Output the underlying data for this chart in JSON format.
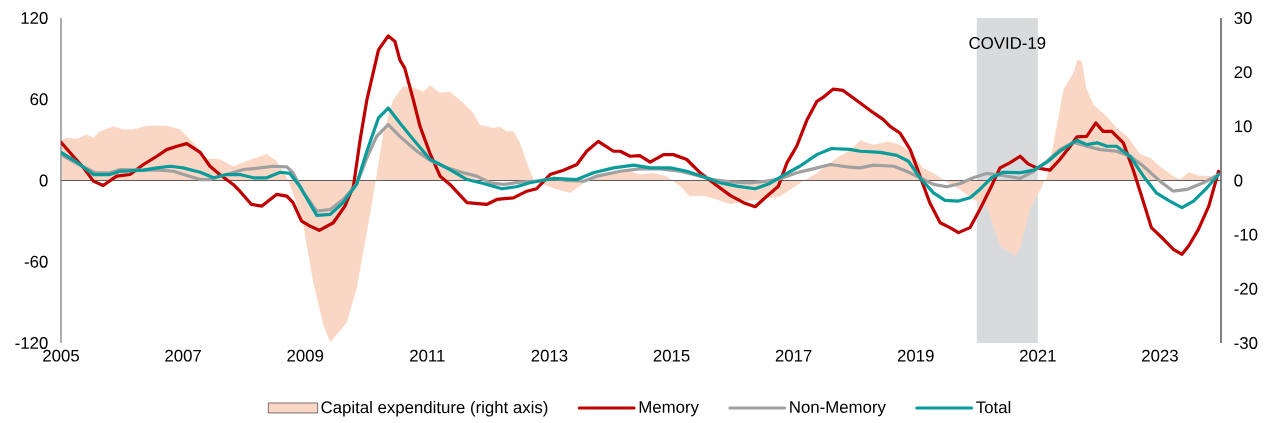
{
  "chart_data": {
    "type": "line",
    "xlim": [
      2005,
      2024
    ],
    "xticks": [
      2005,
      2007,
      2009,
      2011,
      2013,
      2015,
      2017,
      2019,
      2021,
      2023
    ],
    "ylim": [
      -120,
      120
    ],
    "yticks": [
      -120,
      -60,
      0,
      60,
      120
    ],
    "y2lim": [
      -30,
      30
    ],
    "y2ticks": [
      -30,
      -20,
      -10,
      0,
      10,
      20,
      30
    ],
    "legend": "bottom",
    "bands": [
      {
        "axis": "x",
        "from": 2020,
        "to": 2021,
        "label": "COVID-19",
        "color": "#d9dadc"
      }
    ],
    "series": [
      {
        "name": "Capital expenditure (right axis)",
        "type": "area",
        "axis": "y2",
        "color": "#fad7c5",
        "x": [
          2005.02,
          2005.09,
          2005.26,
          2005.42,
          2005.53,
          2005.64,
          2005.86,
          2006.02,
          2006.18,
          2006.4,
          2006.73,
          2006.95,
          2007.17,
          2007.39,
          2007.6,
          2007.82,
          2008.04,
          2008.37,
          2008.53,
          2008.7,
          2008.8,
          2008.97,
          2009.13,
          2009.3,
          2009.41,
          2009.68,
          2009.84,
          2010.01,
          2010.14,
          2010.28,
          2010.44,
          2010.61,
          2010.77,
          2010.94,
          2011.04,
          2011.21,
          2011.37,
          2011.59,
          2011.75,
          2011.86,
          2012.08,
          2012.19,
          2012.3,
          2012.41,
          2012.52,
          2012.63,
          2012.74,
          2012.96,
          2013.17,
          2013.34,
          2013.5,
          2013.72,
          2013.94,
          2014.27,
          2014.48,
          2014.7,
          2014.92,
          2015.14,
          2015.3,
          2015.52,
          2015.74,
          2015.96,
          2016.23,
          2016.5,
          2016.78,
          2016.94,
          2017.16,
          2017.38,
          2017.6,
          2017.76,
          2017.92,
          2018.09,
          2018.31,
          2018.55,
          2018.74,
          2018.93,
          2019.12,
          2019.29,
          2019.51,
          2019.73,
          2019.94,
          2020.16,
          2020.38,
          2020.63,
          2020.71,
          2020.87,
          2021.04,
          2021.15,
          2021.31,
          2021.42,
          2021.58,
          2021.65,
          2021.72,
          2021.8,
          2021.91,
          2022.13,
          2022.29,
          2022.46,
          2022.68,
          2022.84,
          2023,
          2023.22,
          2023.33,
          2023.47,
          2023.63,
          2023.82,
          2023.96
        ],
        "values": [
          7.5,
          7.9,
          7.7,
          8.5,
          7.9,
          9.1,
          10,
          9.4,
          9.4,
          10.1,
          10.1,
          9.4,
          6.9,
          4,
          3.9,
          2.6,
          3.6,
          4.9,
          3.6,
          0.5,
          -2.3,
          -8.4,
          -18.8,
          -26.8,
          -29.9,
          -26.2,
          -20.1,
          -9.6,
          -1,
          8.8,
          14.9,
          17.4,
          17.1,
          16.4,
          17.6,
          16.2,
          16.4,
          14.3,
          12.5,
          10.3,
          9.7,
          9.9,
          9.1,
          9.1,
          6.9,
          3.3,
          0.2,
          -1,
          -1.8,
          -2.3,
          -1,
          1.1,
          1.4,
          1.9,
          1.1,
          1.4,
          0.8,
          -1,
          -2.9,
          -2.8,
          -3.5,
          -4.4,
          -3.8,
          -3.5,
          -2.9,
          -1.7,
          -0.1,
          1.4,
          3.3,
          4.5,
          5.6,
          7.4,
          6.6,
          7.2,
          6.6,
          5.1,
          2.3,
          1.4,
          -0.3,
          -1.7,
          -3.5,
          -4.7,
          -12.1,
          -13.9,
          -12.4,
          -5.3,
          -1.7,
          0.8,
          10,
          16.8,
          19.8,
          22.3,
          22,
          16.8,
          14,
          11.8,
          9.7,
          8.2,
          4.8,
          4.2,
          2.6,
          0.8,
          0.2,
          1.5,
          0.9,
          0.8,
          -0.1
        ]
      },
      {
        "name": "Memory",
        "color": "#c00000",
        "x": [
          2005.0,
          2005.2,
          2005.37,
          2005.53,
          2005.69,
          2005.91,
          2006.13,
          2006.35,
          2006.57,
          2006.73,
          2006.9,
          2007.06,
          2007.28,
          2007.44,
          2007.6,
          2007.82,
          2007.93,
          2008.12,
          2008.29,
          2008.53,
          2008.7,
          2008.8,
          2008.94,
          2009.08,
          2009.23,
          2009.46,
          2009.65,
          2009.79,
          2009.9,
          2010.01,
          2010.2,
          2010.36,
          2010.47,
          2010.55,
          2010.63,
          2010.77,
          2010.88,
          2011.04,
          2011.21,
          2011.37,
          2011.65,
          2011.97,
          2012.14,
          2012.41,
          2012.63,
          2012.79,
          2013.01,
          2013.23,
          2013.45,
          2013.61,
          2013.8,
          2014.05,
          2014.16,
          2014.32,
          2014.48,
          2014.65,
          2014.87,
          2015.03,
          2015.25,
          2015.47,
          2015.68,
          2015.96,
          2016.18,
          2016.37,
          2016.56,
          2016.75,
          2016.89,
          2017.05,
          2017.22,
          2017.38,
          2017.49,
          2017.65,
          2017.81,
          2018.09,
          2018.31,
          2018.47,
          2018.58,
          2018.74,
          2018.91,
          2019.07,
          2019.23,
          2019.4,
          2019.56,
          2019.7,
          2019.89,
          2020.05,
          2020.24,
          2020.38,
          2020.54,
          2020.71,
          2020.84,
          2020.98,
          2021.2,
          2021.36,
          2021.53,
          2021.64,
          2021.8,
          2021.95,
          2022.07,
          2022.21,
          2022.4,
          2022.56,
          2022.7,
          2022.86,
          2023.06,
          2023.22,
          2023.36,
          2023.47,
          2023.63,
          2023.8,
          2023.96
        ],
        "values": [
          28.2,
          17.9,
          9.3,
          -0.5,
          -3.7,
          3.2,
          4.4,
          11.8,
          17.9,
          22.8,
          25.3,
          27.2,
          20.8,
          10.5,
          4.4,
          -2.9,
          -7.9,
          -17.7,
          -18.9,
          -10.3,
          -11.6,
          -16.4,
          -30,
          -33.7,
          -36.8,
          -31.2,
          -18.9,
          -4.2,
          30.2,
          59.6,
          96.5,
          106.8,
          102.6,
          89.1,
          83,
          59.6,
          40,
          20.4,
          3.2,
          -2.9,
          -16.4,
          -17.7,
          -14,
          -12.8,
          -7.9,
          -6.1,
          4.4,
          7.6,
          11.8,
          21.6,
          28.9,
          21.6,
          21.6,
          17.9,
          18.4,
          13.5,
          19.1,
          19.1,
          15.5,
          5.7,
          -1.7,
          -11,
          -16.4,
          -19.4,
          -11.6,
          -4.2,
          13,
          25.3,
          44.9,
          58.4,
          61.6,
          67.5,
          66.5,
          57.2,
          49.9,
          44.9,
          40,
          35.1,
          22.8,
          3.2,
          -16.4,
          -31.2,
          -34.8,
          -38.5,
          -34.8,
          -21.4,
          -4.2,
          9.3,
          13,
          17.9,
          12.3,
          9.3,
          7.6,
          15.5,
          25.3,
          32.2,
          32.6,
          42.5,
          36.3,
          36.3,
          27.8,
          8.1,
          -11.6,
          -34.8,
          -43.4,
          -50.8,
          -54.5,
          -48.4,
          -36.1,
          -18.9,
          6.8
        ]
      },
      {
        "name": "Non-Memory",
        "color": "#a0a0a0",
        "x": [
          2005,
          2005.26,
          2005.56,
          2005.8,
          2005.97,
          2006.35,
          2006.62,
          2006.84,
          2007.06,
          2007.28,
          2007.44,
          2007.71,
          2007.99,
          2008.26,
          2008.48,
          2008.7,
          2008.8,
          2008.97,
          2009.19,
          2009.41,
          2009.62,
          2009.84,
          2010.01,
          2010.17,
          2010.36,
          2010.55,
          2010.83,
          2011.04,
          2011.32,
          2011.59,
          2011.81,
          2012.03,
          2012.25,
          2012.52,
          2012.79,
          2013.06,
          2013.28,
          2013.56,
          2013.78,
          2014.16,
          2014.48,
          2014.81,
          2015.14,
          2015.41,
          2015.68,
          2015.96,
          2016.28,
          2016.56,
          2016.78,
          2017.05,
          2017.32,
          2017.6,
          2017.92,
          2018.09,
          2018.31,
          2018.64,
          2018.85,
          2019.07,
          2019.29,
          2019.51,
          2019.73,
          2019.94,
          2020.16,
          2020.43,
          2020.71,
          2020.93,
          2021.15,
          2021.36,
          2021.58,
          2021.8,
          2022.02,
          2022.29,
          2022.51,
          2022.73,
          2023,
          2023.22,
          2023.44,
          2023.71,
          2023.96
        ],
        "values": [
          19.1,
          12.5,
          5.7,
          5.7,
          8.1,
          7.6,
          7.6,
          6.8,
          3.7,
          0.7,
          0.7,
          4.4,
          8.1,
          9.3,
          10.5,
          10.1,
          5.7,
          -9.1,
          -22.6,
          -21.4,
          -14,
          -2.9,
          16.7,
          32.6,
          41.2,
          32.6,
          21.6,
          15,
          9.3,
          5.7,
          3.2,
          -1.7,
          -2.9,
          -1.2,
          -0.5,
          1.5,
          0,
          -0.5,
          3.2,
          6.8,
          8.6,
          8.6,
          6.8,
          3.9,
          0.7,
          -1,
          -1.7,
          -0.5,
          1.2,
          5.7,
          8.6,
          11.8,
          9.8,
          9.3,
          11.3,
          10.5,
          6.8,
          2,
          -2.9,
          -4.6,
          -2.2,
          2,
          5.2,
          3.7,
          1.5,
          6.8,
          14.2,
          22.8,
          28.2,
          25.3,
          22.8,
          21.6,
          17.9,
          10.5,
          -0.5,
          -7.9,
          -6.6,
          -1.7,
          4.4
        ]
      },
      {
        "name": "Total",
        "color": "#0a9b9b",
        "x": [
          2005,
          2005.26,
          2005.53,
          2005.8,
          2005.97,
          2006.35,
          2006.57,
          2006.79,
          2007.0,
          2007.28,
          2007.5,
          2007.71,
          2007.93,
          2008.15,
          2008.37,
          2008.59,
          2008.75,
          2008.91,
          2009.19,
          2009.41,
          2009.62,
          2009.84,
          2010.01,
          2010.2,
          2010.36,
          2010.55,
          2010.77,
          2011.04,
          2011.37,
          2011.65,
          2011.92,
          2012.22,
          2012.46,
          2012.68,
          2013.06,
          2013.45,
          2013.72,
          2014.05,
          2014.38,
          2014.65,
          2014.98,
          2015.25,
          2015.52,
          2015.79,
          2016.07,
          2016.37,
          2016.61,
          2016.83,
          2017.1,
          2017.38,
          2017.62,
          2017.92,
          2018.09,
          2018.42,
          2018.69,
          2018.88,
          2019.07,
          2019.29,
          2019.48,
          2019.7,
          2019.89,
          2020.05,
          2020.24,
          2020.43,
          2020.71,
          2020.93,
          2021.15,
          2021.36,
          2021.64,
          2021.8,
          2021.97,
          2022.13,
          2022.29,
          2022.51,
          2022.73,
          2022.94,
          2023.16,
          2023.36,
          2023.55,
          2023.77,
          2023.96
        ],
        "values": [
          20.8,
          13.5,
          4.4,
          4.4,
          6.8,
          7.6,
          9.3,
          10.5,
          9.3,
          6.1,
          2,
          4.4,
          4.4,
          2,
          2,
          6.1,
          5.2,
          -4.2,
          -25.8,
          -25,
          -16.4,
          -2.9,
          21.6,
          46.2,
          53.5,
          42.5,
          30.2,
          15.8,
          8.1,
          0.7,
          -2.2,
          -6.1,
          -4.6,
          -1.7,
          1.5,
          0.7,
          5.7,
          9.3,
          11.3,
          9.3,
          9.3,
          6.8,
          2.7,
          -1.7,
          -4.2,
          -6.1,
          -2.2,
          3.7,
          10.5,
          19.1,
          23.6,
          23,
          21.6,
          20.8,
          18.6,
          14.2,
          2,
          -9.1,
          -14.7,
          -15.2,
          -12.8,
          -6.6,
          2,
          6.1,
          5.7,
          7.6,
          13.5,
          21.6,
          29.7,
          26.5,
          27.8,
          25.3,
          25.3,
          17.9,
          3.2,
          -9.1,
          -15.2,
          -20.1,
          -15.2,
          -5.4,
          4.4
        ]
      }
    ]
  }
}
